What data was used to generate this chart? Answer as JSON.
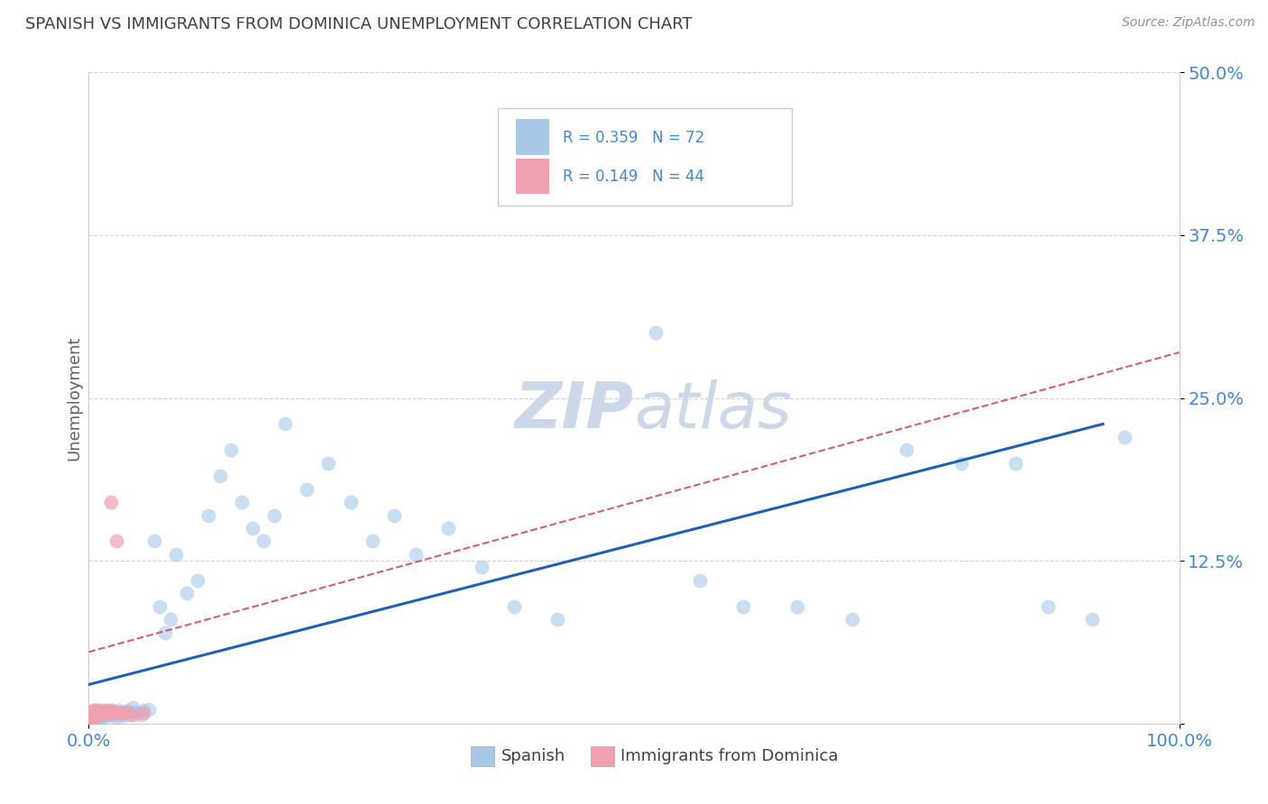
{
  "title": "SPANISH VS IMMIGRANTS FROM DOMINICA UNEMPLOYMENT CORRELATION CHART",
  "source": "Source: ZipAtlas.com",
  "ylabel": "Unemployment",
  "xlim": [
    0,
    1.0
  ],
  "ylim": [
    0,
    0.5
  ],
  "yticks": [
    0.0,
    0.125,
    0.25,
    0.375,
    0.5
  ],
  "yticklabels": [
    "",
    "12.5%",
    "25.0%",
    "37.5%",
    "50.0%"
  ],
  "xtick_left_label": "0.0%",
  "xtick_right_label": "100.0%",
  "background_color": "#ffffff",
  "grid_color": "#d0d0d0",
  "blue_scatter_color": "#a8c8e8",
  "pink_scatter_color": "#f0a0b0",
  "blue_line_color": "#2060b0",
  "pink_line_color": "#d06070",
  "title_color": "#404040",
  "source_color": "#909090",
  "axis_label_color": "#606060",
  "tick_color": "#4488cc",
  "watermark_color": "#ccd8e8",
  "legend_r1": "R = 0.359",
  "legend_n1": "N = 72",
  "legend_r2": "R = 0.149",
  "legend_n2": "N = 44",
  "blue_line_x0": 0.0,
  "blue_line_y0": 0.03,
  "blue_line_x1": 0.93,
  "blue_line_y1": 0.23,
  "pink_line_x0": 0.0,
  "pink_line_y0": 0.055,
  "pink_line_x1": 1.0,
  "pink_line_y1": 0.285,
  "spanish_x": [
    0.005,
    0.007,
    0.008,
    0.009,
    0.01,
    0.01,
    0.011,
    0.012,
    0.013,
    0.014,
    0.015,
    0.015,
    0.016,
    0.017,
    0.018,
    0.019,
    0.02,
    0.021,
    0.022,
    0.023,
    0.025,
    0.026,
    0.027,
    0.028,
    0.03,
    0.032,
    0.033,
    0.035,
    0.037,
    0.04,
    0.042,
    0.045,
    0.048,
    0.05,
    0.055,
    0.06,
    0.065,
    0.07,
    0.075,
    0.08,
    0.09,
    0.1,
    0.11,
    0.12,
    0.13,
    0.14,
    0.15,
    0.16,
    0.17,
    0.18,
    0.2,
    0.22,
    0.24,
    0.26,
    0.28,
    0.3,
    0.33,
    0.36,
    0.39,
    0.43,
    0.47,
    0.52,
    0.56,
    0.6,
    0.65,
    0.7,
    0.75,
    0.8,
    0.85,
    0.88,
    0.92,
    0.95
  ],
  "spanish_y": [
    0.005,
    0.008,
    0.01,
    0.006,
    0.009,
    0.004,
    0.007,
    0.005,
    0.008,
    0.006,
    0.01,
    0.007,
    0.008,
    0.009,
    0.006,
    0.007,
    0.008,
    0.01,
    0.007,
    0.009,
    0.005,
    0.008,
    0.01,
    0.007,
    0.009,
    0.006,
    0.008,
    0.01,
    0.007,
    0.012,
    0.009,
    0.008,
    0.007,
    0.01,
    0.011,
    0.14,
    0.09,
    0.07,
    0.08,
    0.13,
    0.1,
    0.11,
    0.16,
    0.19,
    0.21,
    0.17,
    0.15,
    0.14,
    0.16,
    0.23,
    0.18,
    0.2,
    0.17,
    0.14,
    0.16,
    0.13,
    0.15,
    0.12,
    0.09,
    0.08,
    0.44,
    0.3,
    0.11,
    0.09,
    0.09,
    0.08,
    0.21,
    0.2,
    0.2,
    0.09,
    0.08,
    0.22
  ],
  "dominica_x": [
    0.001,
    0.002,
    0.002,
    0.003,
    0.003,
    0.003,
    0.004,
    0.004,
    0.004,
    0.005,
    0.005,
    0.005,
    0.005,
    0.006,
    0.006,
    0.006,
    0.007,
    0.007,
    0.007,
    0.008,
    0.008,
    0.008,
    0.009,
    0.009,
    0.01,
    0.01,
    0.011,
    0.011,
    0.012,
    0.013,
    0.014,
    0.015,
    0.016,
    0.018,
    0.02,
    0.022,
    0.025,
    0.028,
    0.03,
    0.035,
    0.04,
    0.05,
    0.02,
    0.025
  ],
  "dominica_y": [
    0.005,
    0.006,
    0.008,
    0.005,
    0.007,
    0.009,
    0.005,
    0.007,
    0.01,
    0.005,
    0.007,
    0.008,
    0.01,
    0.006,
    0.008,
    0.01,
    0.006,
    0.008,
    0.01,
    0.006,
    0.007,
    0.009,
    0.007,
    0.009,
    0.007,
    0.009,
    0.008,
    0.01,
    0.008,
    0.008,
    0.009,
    0.01,
    0.008,
    0.009,
    0.01,
    0.008,
    0.009,
    0.008,
    0.008,
    0.009,
    0.007,
    0.008,
    0.17,
    0.14
  ]
}
